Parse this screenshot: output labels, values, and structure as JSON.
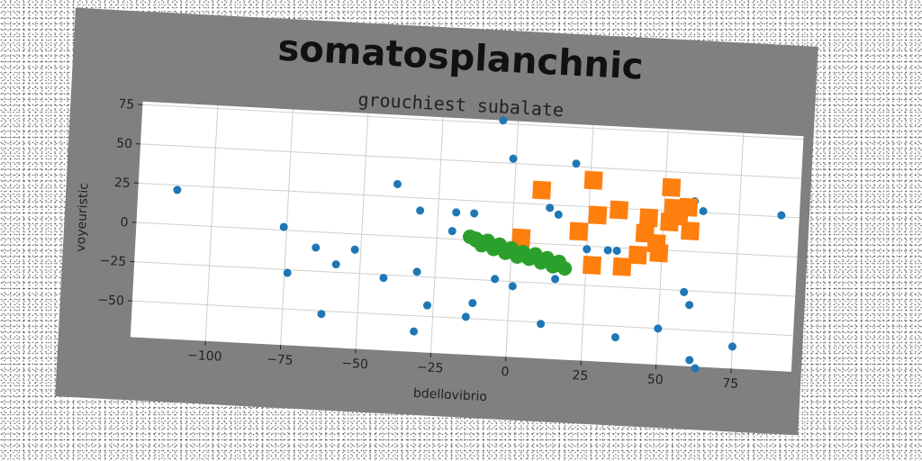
{
  "chart_data": {
    "type": "scatter",
    "title": "somatosplanchnic",
    "subtitle": "grouchiest subalate",
    "xlabel": "bdellovibrio",
    "ylabel": "voyeuristic",
    "xlim": [
      -125,
      95
    ],
    "ylim": [
      -73,
      77
    ],
    "xticks": [
      -100,
      -75,
      -50,
      -25,
      0,
      25,
      50,
      75
    ],
    "yticks": [
      -50,
      -25,
      0,
      25,
      50,
      75
    ],
    "xtick_labels": [
      "−100",
      "−75",
      "−50",
      "−25",
      "0",
      "25",
      "50",
      "75"
    ],
    "ytick_labels": [
      "−50",
      "−25",
      "0",
      "25",
      "50",
      "75"
    ],
    "grid": true,
    "colors": {
      "figure_bg": "#808080",
      "axes_bg": "#ffffff",
      "series_1": "#1f77b4",
      "series_2": "#ff7f0e",
      "series_3": "#2ca02c"
    },
    "series": [
      {
        "marker": "circle",
        "color": "#1f77b4",
        "points": [
          [
            -112,
            22
          ],
          [
            -76,
            2
          ],
          [
            -74,
            -27
          ],
          [
            -65,
            -10
          ],
          [
            -62,
            -52
          ],
          [
            -58,
            -20
          ],
          [
            -52,
            -10
          ],
          [
            -42,
            -27
          ],
          [
            -39,
            33
          ],
          [
            -31,
            17
          ],
          [
            -31,
            -22
          ],
          [
            -31,
            -60
          ],
          [
            -27,
            -43
          ],
          [
            -20,
            5
          ],
          [
            -19,
            17
          ],
          [
            -13,
            17
          ],
          [
            -12,
            -40
          ],
          [
            -14,
            -49
          ],
          [
            -5,
            77
          ],
          [
            -5,
            -24
          ],
          [
            -1,
            53
          ],
          [
            1,
            -28
          ],
          [
            11,
            -51
          ],
          [
            12,
            23
          ],
          [
            15,
            19
          ],
          [
            15,
            -22
          ],
          [
            20,
            52
          ],
          [
            25,
            -2
          ],
          [
            32,
            -2
          ],
          [
            35,
            -2
          ],
          [
            36,
            -57
          ],
          [
            45,
            14
          ],
          [
            50,
            -50
          ],
          [
            58,
            -26
          ],
          [
            60,
            32
          ],
          [
            60,
            -34
          ],
          [
            63,
            26
          ],
          [
            61,
            -69
          ],
          [
            63,
            -74
          ],
          [
            75,
            -59
          ],
          [
            89,
            26
          ]
        ]
      },
      {
        "marker": "square",
        "color": "#ff7f0e",
        "points": [
          [
            9,
            34
          ],
          [
            3,
            3
          ],
          [
            22,
            9
          ],
          [
            26,
            42
          ],
          [
            27,
            -12
          ],
          [
            28,
            20
          ],
          [
            35,
            24
          ],
          [
            37,
            -12
          ],
          [
            42,
            -4
          ],
          [
            44,
            10
          ],
          [
            45,
            20
          ],
          [
            48,
            4
          ],
          [
            49,
            -2
          ],
          [
            52,
            18
          ],
          [
            52,
            40
          ],
          [
            53,
            27
          ],
          [
            55,
            22
          ],
          [
            58,
            28
          ],
          [
            59,
            13
          ]
        ]
      },
      {
        "marker": "circle",
        "color": "#2ca02c",
        "points": [
          [
            -14,
            2
          ],
          [
            -12,
            0
          ],
          [
            -10,
            -1
          ],
          [
            -8,
            -2
          ],
          [
            -6,
            -3
          ],
          [
            -4,
            -4
          ],
          [
            -2,
            -5
          ],
          [
            0,
            -6
          ],
          [
            2,
            -7
          ],
          [
            4,
            -8
          ],
          [
            6,
            -9
          ],
          [
            8,
            -9
          ],
          [
            10,
            -10
          ],
          [
            12,
            -11
          ],
          [
            14,
            -12
          ],
          [
            16,
            -13
          ],
          [
            -12,
            1
          ],
          [
            -8,
            0
          ],
          [
            -4,
            -2
          ],
          [
            0,
            -4
          ],
          [
            4,
            -6
          ],
          [
            8,
            -7
          ],
          [
            12,
            -9
          ],
          [
            16,
            -11
          ],
          [
            -10,
            -3
          ],
          [
            -6,
            -5
          ],
          [
            -2,
            -7
          ],
          [
            2,
            -9
          ],
          [
            6,
            -10
          ],
          [
            10,
            -12
          ],
          [
            14,
            -14
          ],
          [
            18,
            -15
          ]
        ]
      }
    ]
  }
}
